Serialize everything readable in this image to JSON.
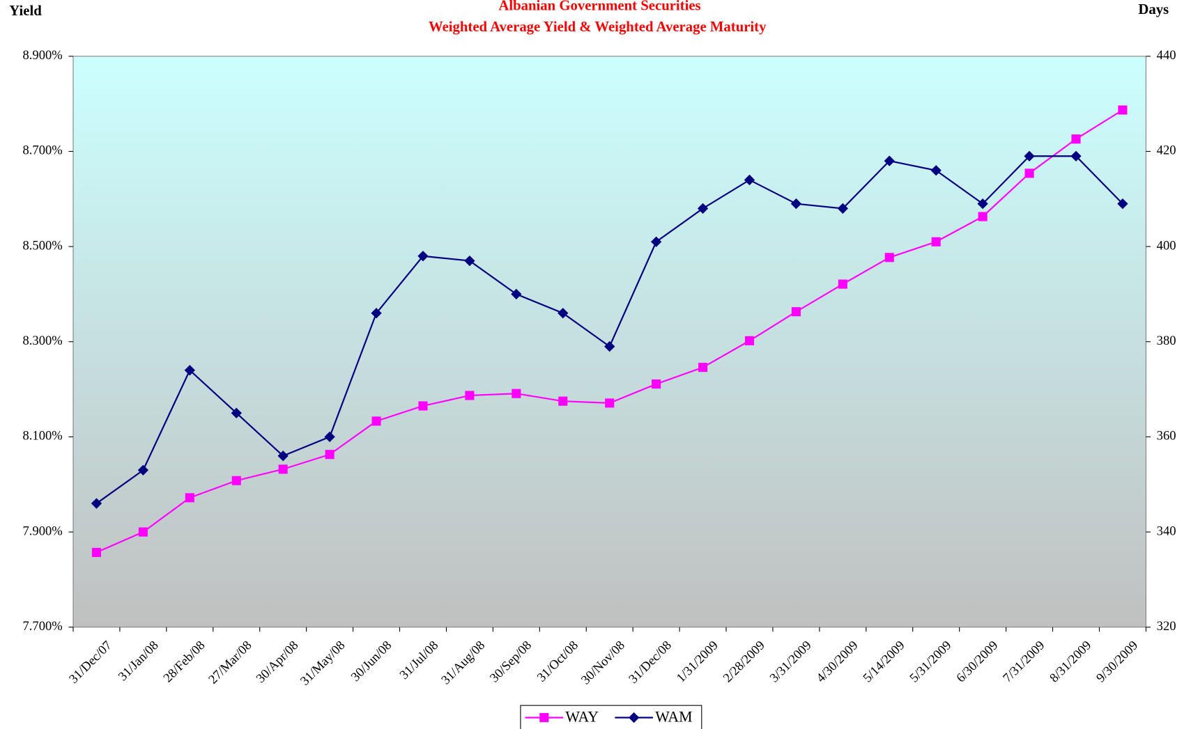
{
  "chart_data": {
    "type": "line",
    "title": "Albanian Government Securities",
    "subtitle": "Weighted Average Yield & Weighted Average Maturity",
    "y_label": "Yield",
    "y2_label": "Days",
    "categories": [
      "31/Dec/07",
      "31/Jan/08",
      "28/Feb/08",
      "27/Mar/08",
      "30/Apr/08",
      "31/May/08",
      "30/Jun/08",
      "31/Jul/08",
      "31/Aug/08",
      "30/Sep/08",
      "31/Oct/08",
      "30/Nov/08",
      "31/Dec/08",
      "1/31/2009",
      "2/28/2009",
      "3/31/2009",
      "4/30/2009",
      "5/14/2009",
      "5/31/2009",
      "6/30/2009",
      "7/31/2009",
      "8/31/2009",
      "9/30/2009"
    ],
    "series": [
      {
        "name": "WAY",
        "color": "#ff00ff",
        "marker": "square",
        "axis": "y",
        "values": [
          7.857,
          7.9,
          7.972,
          8.008,
          8.032,
          8.063,
          8.133,
          8.165,
          8.187,
          8.191,
          8.175,
          8.171,
          8.211,
          8.246,
          8.302,
          8.363,
          8.421,
          8.477,
          8.51,
          8.563,
          8.654,
          8.726,
          8.787
        ]
      },
      {
        "name": "WAM",
        "color": "#000080",
        "marker": "diamond",
        "axis": "y2",
        "values": [
          346,
          353,
          374,
          365,
          356,
          360,
          386,
          398,
          397,
          390,
          386,
          379,
          401,
          408,
          414,
          409,
          408,
          418,
          416,
          409,
          419,
          419,
          409
        ]
      }
    ],
    "ylim": [
      7.7,
      8.9
    ],
    "yticks": [
      {
        "value": 7.7,
        "label": "7.700%"
      },
      {
        "value": 7.9,
        "label": "7.900%"
      },
      {
        "value": 8.1,
        "label": "8.100%"
      },
      {
        "value": 8.3,
        "label": "8.300%"
      },
      {
        "value": 8.5,
        "label": "8.500%"
      },
      {
        "value": 8.7,
        "label": "8.700%"
      },
      {
        "value": 8.9,
        "label": "8.900%"
      }
    ],
    "y2lim": [
      320,
      440
    ],
    "y2ticks": [
      320,
      340,
      360,
      380,
      400,
      420,
      440
    ],
    "legend": "bottom"
  }
}
